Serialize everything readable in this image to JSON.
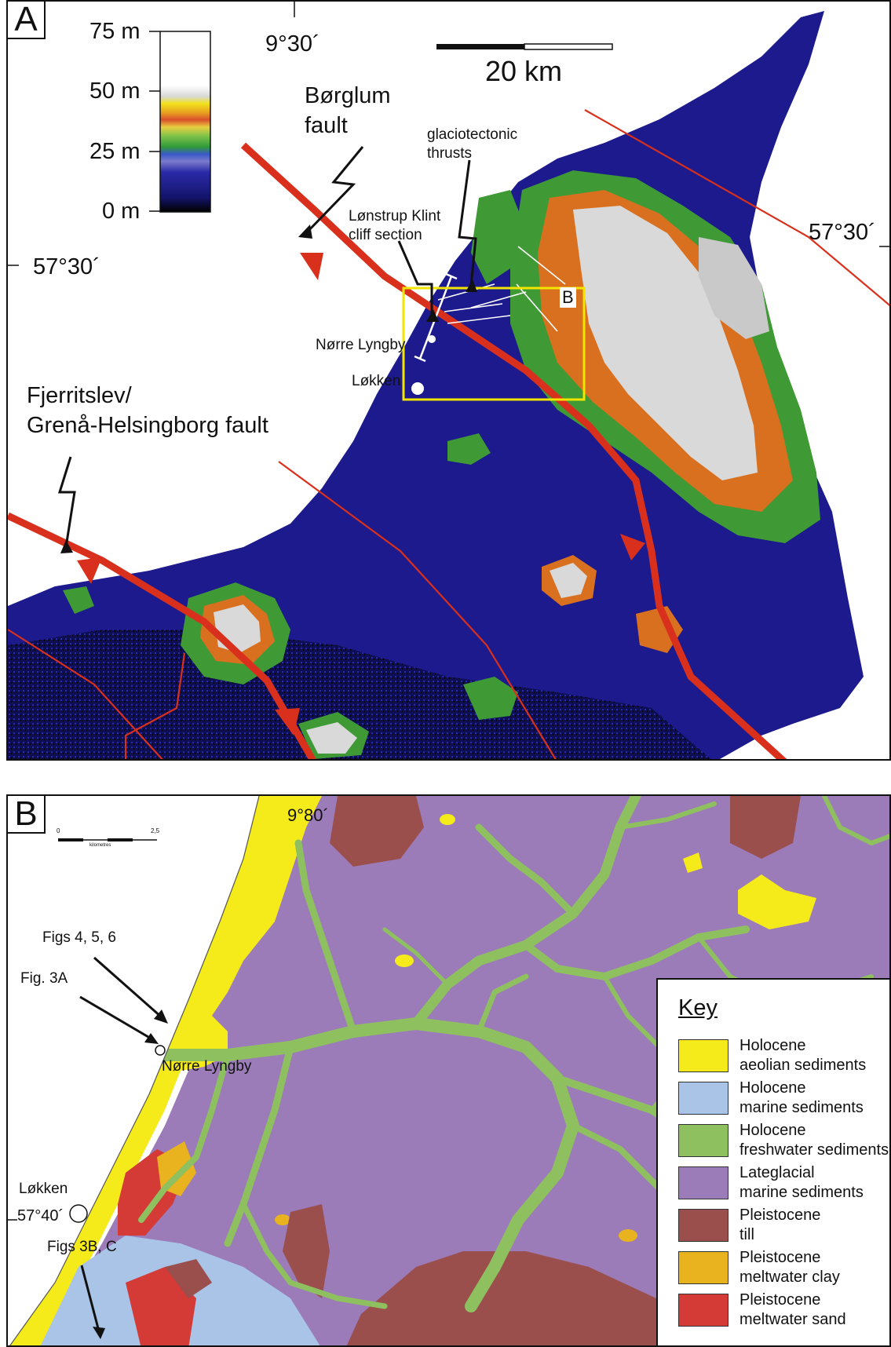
{
  "panel_a": {
    "label": "A",
    "elevation_ticks": [
      "75 m",
      "50 m",
      "25 m",
      "0 m"
    ],
    "longitude_label": "9°30´",
    "latitude_left": "57°30´",
    "latitude_right": "57°30´",
    "scale_label": "20 km",
    "borglum_fault_line1": "Børglum",
    "borglum_fault_line2": "fault",
    "fjerritslev_line1": "Fjerritslev/",
    "fjerritslev_line2": "Grenå-Helsingborg fault",
    "glaciotectonic_line1": "glaciotectonic",
    "glaciotectonic_line2": "thrusts",
    "lonstrup_line1": "Lønstrup Klint",
    "lonstrup_line2": "cliff section",
    "inset_label": "B",
    "town_1": "Nørre Lyngby",
    "town_2": "Løkken",
    "colors": {
      "lowland": "#1c1a8c",
      "low_mid": "#2b2ab0",
      "green": "#3f9a35",
      "orange": "#d9701f",
      "highland": "#d9d9d9",
      "fault": "#d8301c",
      "inset_box": "#f2e600"
    }
  },
  "panel_b": {
    "label": "B",
    "longitude_label": "9°80´",
    "latitude_label": "57°40´",
    "scale_min": "0",
    "scale_max": "2,5",
    "scale_unit": "kilometres",
    "callout_1": "Figs 4, 5, 6",
    "callout_2": "Fig. 3A",
    "callout_3": "Figs 3B, C",
    "town_1": "Nørre Lyngby",
    "town_2": "Løkken",
    "key_title": "Key",
    "key_items": [
      {
        "line1": "Holocene",
        "line2": "aeolian sediments",
        "color": "#f5ea1a"
      },
      {
        "line1": "Holocene",
        "line2": "marine sediments",
        "color": "#a9c4e6"
      },
      {
        "line1": "Holocene",
        "line2": "freshwater sediments",
        "color": "#8fc060"
      },
      {
        "line1": "Lateglacial",
        "line2": "marine sediments",
        "color": "#9b7bb8"
      },
      {
        "line1": "Pleistocene",
        "line2": "till",
        "color": "#9a4f4c"
      },
      {
        "line1": "Pleistocene",
        "line2": "meltwater clay",
        "color": "#e8b31e"
      },
      {
        "line1": "Pleistocene",
        "line2": "meltwater sand",
        "color": "#d43a36"
      }
    ]
  }
}
